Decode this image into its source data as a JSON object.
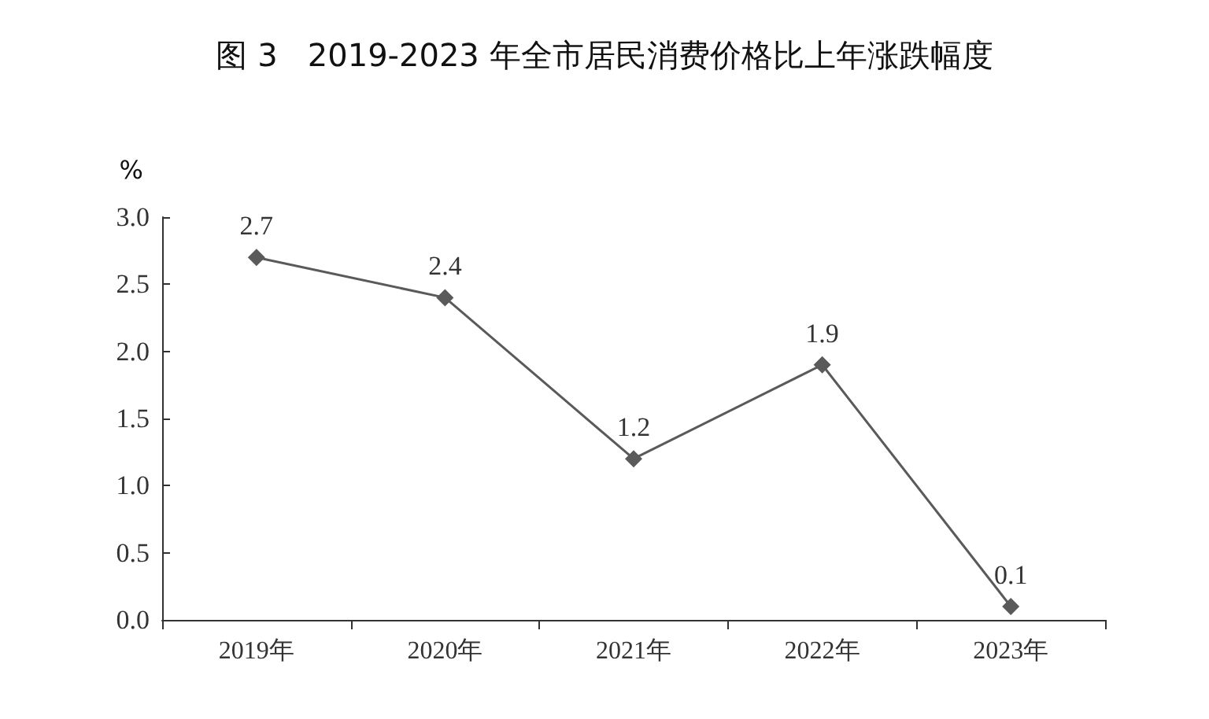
{
  "chart_data": {
    "type": "line",
    "title": "图 3   2019-2023 年全市居民消费价格比上年涨跌幅度",
    "ylabel": "%",
    "categories": [
      "2019年",
      "2020年",
      "2021年",
      "2022年",
      "2023年"
    ],
    "series": [
      {
        "color": "#5a5a5a",
        "values": [
          2.7,
          2.4,
          1.2,
          1.9,
          0.1
        ]
      }
    ],
    "ylim": [
      0,
      3
    ],
    "yticks": [
      {
        "value": 0,
        "label": "0.0"
      },
      {
        "value": 0.5,
        "label": "0.5"
      },
      {
        "value": 1,
        "label": "1.0"
      },
      {
        "value": 1.5,
        "label": "1.5"
      },
      {
        "value": 2,
        "label": "2.0"
      },
      {
        "value": 2.5,
        "label": "2.5"
      },
      {
        "value": 3,
        "label": "3.0"
      }
    ],
    "grid": false,
    "marker": "diamond",
    "line_style": "solid",
    "data_labels": true
  }
}
